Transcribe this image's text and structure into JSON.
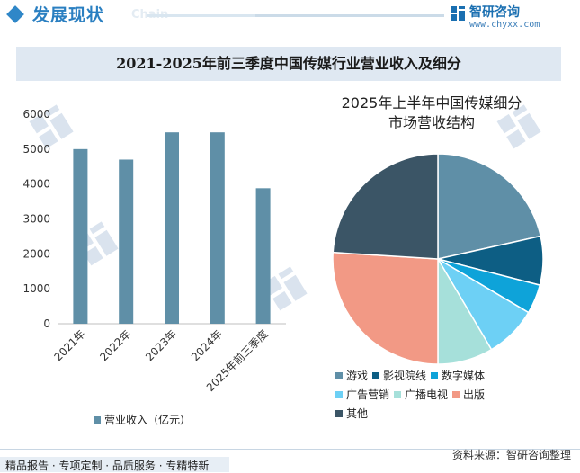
{
  "header": {
    "title": "发展现状",
    "subtitle": "Chain",
    "brand": "智研咨询",
    "url": "www.chyxx.com"
  },
  "title": "2021-2025年前三季度中国传媒行业营业收入及细分",
  "chart_data": [
    {
      "type": "bar",
      "categories": [
        "2021年",
        "2022年",
        "2023年",
        "2024年",
        "2025年前三季度"
      ],
      "series": [
        {
          "name": "营业收入（亿元）",
          "values": [
            5000,
            4700,
            5480,
            5480,
            3880
          ],
          "color": "#5f8fa7"
        }
      ],
      "ylim": [
        0,
        6000
      ],
      "yticks": [
        "0",
        "1000",
        "2000",
        "3000",
        "4000",
        "5000",
        "6000"
      ],
      "legend_position": "bottom"
    },
    {
      "type": "pie",
      "title": "2025年上半年中国传媒细分市场营收结构",
      "title_lines": [
        "2025年上半年中国传媒细分",
        "市场营收结构"
      ],
      "labels": [
        "游戏",
        "影视院线",
        "数字媒体",
        "广告营销",
        "广播电视",
        "出版",
        "其他"
      ],
      "values": [
        21.5,
        7.5,
        4.5,
        8.0,
        8.5,
        26.0,
        24.0
      ],
      "colors": [
        "#5f8fa7",
        "#0d5e84",
        "#0ea3d9",
        "#6dd0f5",
        "#a6e0da",
        "#f29985",
        "#3b5566"
      ],
      "legend_position": "bottom"
    }
  ],
  "footer": {
    "source": "资料来源：智研咨询整理",
    "slogan": "精品报告 · 专项定制 · 品质服务 · 专精特新"
  }
}
